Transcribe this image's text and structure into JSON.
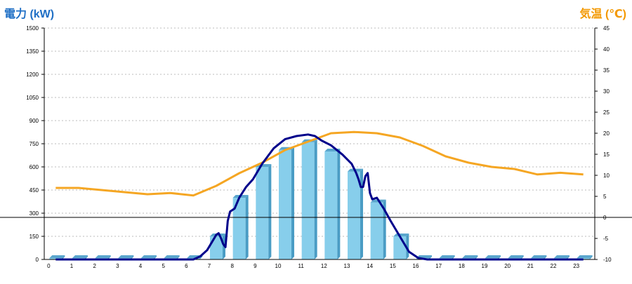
{
  "chart_data": {
    "type": "bar",
    "y_left_label": "電力 (kW)",
    "y_right_label": "気温 (℃)",
    "categories": [
      "0",
      "1",
      "2",
      "3",
      "4",
      "5",
      "6",
      "7",
      "8",
      "9",
      "10",
      "11",
      "12",
      "13",
      "14",
      "15",
      "16",
      "17",
      "18",
      "19",
      "20",
      "21",
      "22",
      "23"
    ],
    "y_left_ticks": [
      "1500",
      "1350",
      "1200",
      "1050",
      "900",
      "750",
      "600",
      "450",
      "300",
      "150",
      "0"
    ],
    "y_right_ticks": [
      "45",
      "40",
      "35",
      "30",
      "25",
      "20",
      "15",
      "10",
      "5",
      "0",
      "-5",
      "-10"
    ],
    "ylim_left": [
      0,
      1500
    ],
    "ylim_right": [
      -10,
      45
    ],
    "grid": true,
    "colors": {
      "y_left_label": "#1f6fc5",
      "y_right_label": "#f39800",
      "bar_front": "#87ceeb",
      "bar_side": "#4a9cc4",
      "bar_top": "#5aa6cd",
      "power_line": "#00008b",
      "temperature_line": "#f5a623",
      "zero_line": "#000000",
      "grid": "#bbbbbb"
    },
    "series": [
      {
        "kind": "bar",
        "values": [
          0,
          0,
          0,
          0,
          0,
          0,
          0,
          150,
          400,
          600,
          710,
          760,
          700,
          570,
          370,
          150,
          0,
          0,
          0,
          0,
          0,
          0,
          0,
          0
        ]
      },
      {
        "kind": "line",
        "axis": "left",
        "x": [
          0,
          1,
          2,
          3,
          4,
          5,
          6,
          6.3,
          6.6,
          6.8,
          7.0,
          7.1,
          7.2,
          7.3,
          7.4,
          7.5,
          7.6,
          7.8,
          8.0,
          8.3,
          8.6,
          9.0,
          9.5,
          10.0,
          10.5,
          11.0,
          11.3,
          11.6,
          12.0,
          12.5,
          12.9,
          13.1,
          13.2,
          13.3,
          13.4,
          13.5,
          13.6,
          13.7,
          13.8,
          14.0,
          14.3,
          14.6,
          15.0,
          15.4,
          15.8,
          16.2,
          17,
          18,
          19,
          20,
          21,
          22,
          23
        ],
        "y": [
          0,
          0,
          0,
          0,
          0,
          0,
          0,
          20,
          60,
          110,
          160,
          170,
          140,
          100,
          80,
          250,
          310,
          330,
          400,
          470,
          520,
          620,
          720,
          780,
          800,
          810,
          800,
          770,
          740,
          680,
          620,
          560,
          520,
          470,
          470,
          540,
          560,
          430,
          390,
          400,
          330,
          250,
          150,
          50,
          10,
          0,
          0,
          0,
          0,
          0,
          0,
          0,
          0
        ]
      },
      {
        "kind": "line",
        "axis": "right",
        "x": [
          0,
          1,
          2,
          3,
          4,
          5,
          6,
          7,
          8,
          9,
          10,
          11,
          12,
          13,
          14,
          15,
          16,
          17,
          18,
          19,
          20,
          21,
          22,
          23
        ],
        "y": [
          7,
          7,
          6.5,
          6,
          5.5,
          5.8,
          5.2,
          7.5,
          10.5,
          13,
          16,
          18,
          20,
          20.3,
          20,
          19,
          17,
          14.5,
          13,
          12,
          11.5,
          10.2,
          10.6,
          10.2
        ]
      }
    ]
  }
}
